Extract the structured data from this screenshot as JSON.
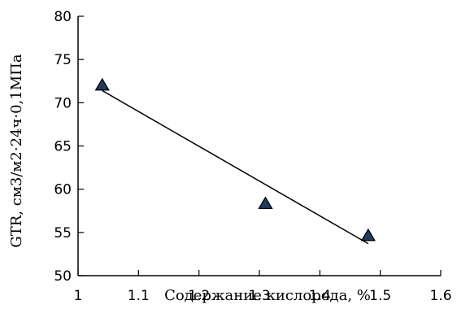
{
  "chart_data": {
    "type": "scatter",
    "xlabel": "Содержание кислорода, %",
    "ylabel": "GTR, см3/м2·24ч·0,1МПа",
    "xlim": [
      1,
      1.6
    ],
    "ylim": [
      50,
      80
    ],
    "x_ticks": [
      "1",
      "1.1",
      "1.2",
      "1.3",
      "1.4",
      "1.5",
      "1.6"
    ],
    "y_ticks": [
      "50",
      "55",
      "60",
      "65",
      "70",
      "75",
      "80"
    ],
    "grid": false,
    "series": [
      {
        "marker": "triangle",
        "marker_color": "#1f3b63",
        "points": [
          {
            "x": 1.04,
            "y": 72.0
          },
          {
            "x": 1.31,
            "y": 58.3
          },
          {
            "x": 1.48,
            "y": 54.6
          }
        ]
      }
    ],
    "trendline": {
      "type": "linear",
      "from": {
        "x": 1.04,
        "y": 71.4
      },
      "to": {
        "x": 1.48,
        "y": 53.7
      },
      "color": "#000000"
    }
  }
}
